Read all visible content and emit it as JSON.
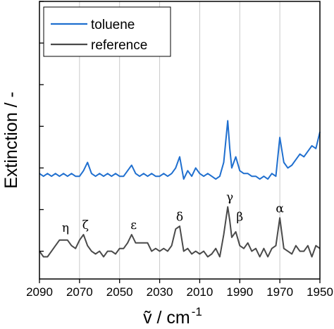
{
  "chart_data": {
    "type": "line",
    "title": "",
    "xlabel": "ṽ / cm",
    "xlabel_sup": "-1",
    "ylabel": "Extinction / -",
    "xlim": [
      2090,
      1950
    ],
    "x_reversed": true,
    "ylim": [
      0,
      1
    ],
    "y_tick_labels_shown": false,
    "x_ticks": [
      2090,
      2070,
      2050,
      2030,
      2010,
      1990,
      1970,
      1950
    ],
    "x_tick_labels": [
      "2090",
      "2070",
      "2050",
      "2030",
      "2010",
      "1990",
      "1970",
      "1950"
    ],
    "y_ticks": [
      0.1,
      0.25,
      0.4,
      0.55,
      0.7,
      0.85,
      1.0
    ],
    "grid": "vertical",
    "legend": "top-left",
    "series": [
      {
        "name": "toluene",
        "color": "#1f6fcf",
        "x": [
          2090,
          2088,
          2086,
          2084,
          2082,
          2080,
          2078,
          2076,
          2074,
          2072,
          2070,
          2068,
          2066,
          2064,
          2062,
          2060,
          2058,
          2056,
          2054,
          2052,
          2050,
          2048,
          2046,
          2044,
          2042,
          2040,
          2038,
          2036,
          2034,
          2032,
          2030,
          2028,
          2026,
          2024,
          2022,
          2020,
          2018,
          2016,
          2014,
          2012,
          2010,
          2008,
          2006,
          2004,
          2002,
          2000,
          1998,
          1996,
          1995,
          1994,
          1992,
          1990,
          1988,
          1986,
          1984,
          1982,
          1980,
          1978,
          1976,
          1974,
          1972,
          1971,
          1970,
          1968,
          1966,
          1964,
          1962,
          1960,
          1958,
          1956,
          1954,
          1952,
          1950
        ],
        "y": [
          0.38,
          0.37,
          0.38,
          0.37,
          0.38,
          0.37,
          0.38,
          0.37,
          0.38,
          0.37,
          0.37,
          0.39,
          0.42,
          0.38,
          0.37,
          0.38,
          0.37,
          0.38,
          0.37,
          0.38,
          0.37,
          0.37,
          0.39,
          0.41,
          0.38,
          0.37,
          0.38,
          0.37,
          0.38,
          0.37,
          0.37,
          0.38,
          0.37,
          0.38,
          0.4,
          0.44,
          0.36,
          0.39,
          0.37,
          0.4,
          0.38,
          0.37,
          0.38,
          0.37,
          0.36,
          0.37,
          0.42,
          0.57,
          0.47,
          0.4,
          0.44,
          0.39,
          0.38,
          0.38,
          0.37,
          0.37,
          0.36,
          0.37,
          0.36,
          0.38,
          0.37,
          0.44,
          0.51,
          0.42,
          0.4,
          0.41,
          0.43,
          0.45,
          0.44,
          0.46,
          0.48,
          0.47,
          0.53
        ]
      },
      {
        "name": "reference",
        "color": "#4a4a4a",
        "x": [
          2090,
          2088,
          2086,
          2084,
          2082,
          2080,
          2078,
          2076,
          2074,
          2072,
          2070,
          2068,
          2066,
          2064,
          2062,
          2060,
          2058,
          2056,
          2054,
          2052,
          2050,
          2048,
          2046,
          2044,
          2042,
          2040,
          2038,
          2036,
          2034,
          2032,
          2030,
          2028,
          2026,
          2024,
          2022,
          2020,
          2018,
          2016,
          2014,
          2012,
          2010,
          2008,
          2006,
          2004,
          2002,
          2000,
          1998,
          1996,
          1995,
          1994,
          1992,
          1990,
          1988,
          1986,
          1984,
          1982,
          1980,
          1978,
          1976,
          1974,
          1972,
          1971,
          1970,
          1968,
          1966,
          1964,
          1962,
          1960,
          1958,
          1956,
          1954,
          1952,
          1950
        ],
        "y": [
          0.1,
          0.08,
          0.08,
          0.1,
          0.12,
          0.14,
          0.14,
          0.14,
          0.12,
          0.11,
          0.14,
          0.16,
          0.12,
          0.1,
          0.09,
          0.1,
          0.08,
          0.1,
          0.1,
          0.09,
          0.11,
          0.11,
          0.13,
          0.16,
          0.13,
          0.13,
          0.13,
          0.13,
          0.1,
          0.11,
          0.1,
          0.11,
          0.1,
          0.12,
          0.18,
          0.19,
          0.1,
          0.11,
          0.09,
          0.1,
          0.09,
          0.1,
          0.08,
          0.09,
          0.11,
          0.08,
          0.16,
          0.26,
          0.21,
          0.15,
          0.17,
          0.12,
          0.11,
          0.13,
          0.1,
          0.11,
          0.08,
          0.11,
          0.08,
          0.11,
          0.12,
          0.17,
          0.22,
          0.11,
          0.1,
          0.09,
          0.12,
          0.1,
          0.1,
          0.12,
          0.08,
          0.12,
          0.11
        ]
      }
    ],
    "annotations": [
      {
        "text": "η",
        "x": 2077,
        "y": 0.17
      },
      {
        "text": "ζ",
        "x": 2067,
        "y": 0.18
      },
      {
        "text": "ε",
        "x": 2043,
        "y": 0.18
      },
      {
        "text": "δ",
        "x": 2020,
        "y": 0.21
      },
      {
        "text": "γ",
        "x": 1995,
        "y": 0.28
      },
      {
        "text": "β",
        "x": 1990,
        "y": 0.21
      },
      {
        "text": "α",
        "x": 1970,
        "y": 0.24
      }
    ]
  }
}
